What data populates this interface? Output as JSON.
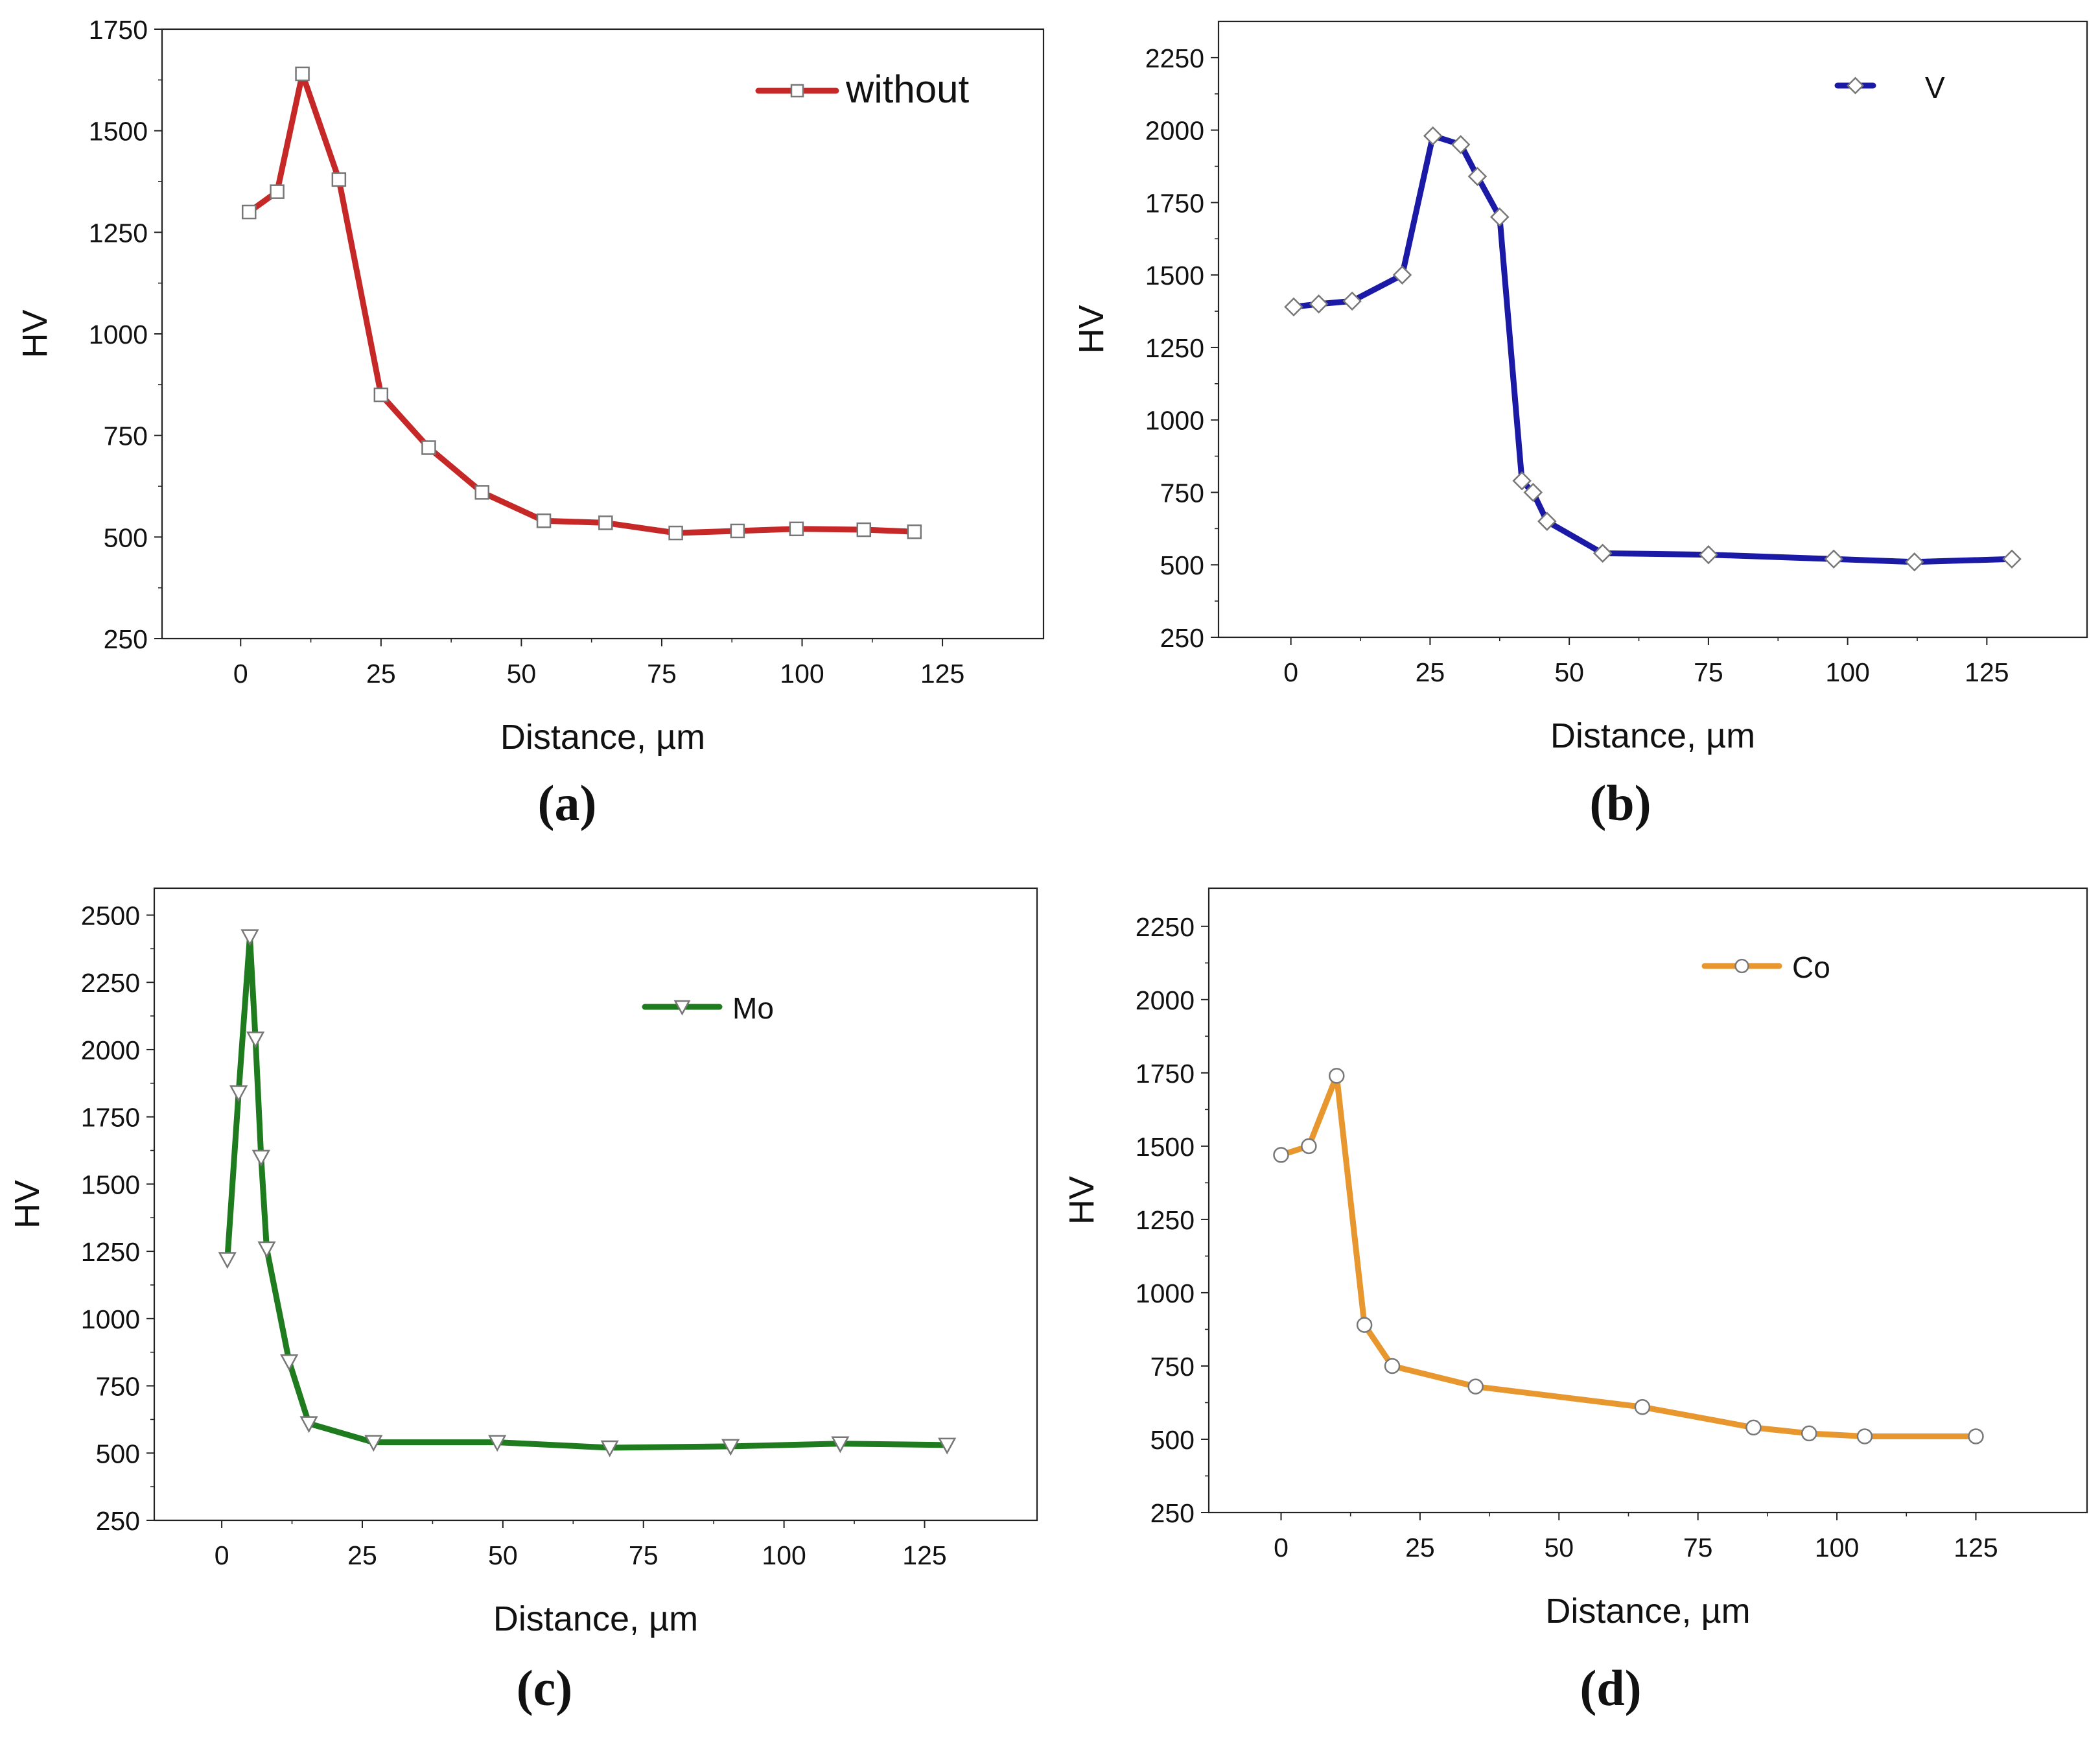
{
  "figure": {
    "panels": [
      {
        "id": "a",
        "label": "(a)",
        "color": "#c62828",
        "marker": "square"
      },
      {
        "id": "b",
        "label": "(b)",
        "color": "#1a1aa6",
        "marker": "diamond"
      },
      {
        "id": "c",
        "label": "(c)",
        "color": "#1e7b1e",
        "marker": "triangle-down"
      },
      {
        "id": "d",
        "label": "(d)",
        "color": "#e8962e",
        "marker": "circle"
      }
    ]
  },
  "chart_data": [
    {
      "type": "line",
      "panel": "(a)",
      "xlabel": "Distance, µm",
      "ylabel": "HV",
      "xlim": [
        -14,
        143
      ],
      "ylim": [
        250,
        1750
      ],
      "xticks": [
        0,
        25,
        50,
        75,
        100,
        125
      ],
      "yticks": [
        250,
        500,
        750,
        1000,
        1250,
        1500,
        1750
      ],
      "legend": "top-right",
      "series": [
        {
          "name": "without",
          "color": "#c62828",
          "marker": "square",
          "x": [
            1.5,
            6.5,
            11,
            17.5,
            25,
            33.5,
            43,
            54,
            65,
            77.5,
            88.5,
            99,
            111,
            120
          ],
          "y": [
            1300,
            1350,
            1640,
            1380,
            850,
            720,
            610,
            540,
            535,
            510,
            515,
            520,
            518,
            513
          ]
        }
      ]
    },
    {
      "type": "line",
      "panel": "(b)",
      "xlabel": "Distance, µm",
      "ylabel": "HV",
      "xlim": [
        -13,
        143
      ],
      "ylim": [
        250,
        2375
      ],
      "xticks": [
        0,
        25,
        50,
        75,
        100,
        125
      ],
      "yticks": [
        250,
        500,
        750,
        1000,
        1250,
        1500,
        1750,
        2000,
        2250
      ],
      "legend": "top-right",
      "series": [
        {
          "name": "V",
          "color": "#1a1aa6",
          "marker": "diamond",
          "x": [
            0.5,
            5,
            11,
            20,
            25.5,
            30.5,
            33.5,
            37.5,
            41.5,
            43.5,
            46,
            56,
            75,
            97.5,
            112,
            129.5
          ],
          "y": [
            1390,
            1400,
            1410,
            1500,
            1980,
            1950,
            1840,
            1700,
            790,
            750,
            650,
            540,
            535,
            520,
            510,
            520
          ]
        }
      ]
    },
    {
      "type": "line",
      "panel": "(c)",
      "xlabel": "Distance, µm",
      "ylabel": "HV",
      "xlim": [
        -12,
        145
      ],
      "ylim": [
        250,
        2600
      ],
      "xticks": [
        0,
        25,
        50,
        75,
        100,
        125
      ],
      "yticks": [
        250,
        500,
        750,
        1000,
        1250,
        1500,
        1750,
        2000,
        2250,
        2500
      ],
      "legend": "top-right",
      "series": [
        {
          "name": "Mo",
          "color": "#1e7b1e",
          "marker": "triangle-down",
          "x": [
            1,
            3,
            5,
            6,
            7,
            8,
            12,
            15.5,
            27,
            49,
            69,
            90.5,
            110,
            129
          ],
          "y": [
            1220,
            1840,
            2420,
            2040,
            1600,
            1260,
            840,
            610,
            540,
            540,
            520,
            525,
            535,
            530
          ]
        }
      ]
    },
    {
      "type": "line",
      "panel": "(d)",
      "xlabel": "Distance, µm",
      "ylabel": "HV",
      "xlim": [
        -13,
        145
      ],
      "ylim": [
        250,
        2380
      ],
      "xticks": [
        0,
        25,
        50,
        75,
        100,
        125
      ],
      "yticks": [
        250,
        500,
        750,
        1000,
        1250,
        1500,
        1750,
        2000,
        2250
      ],
      "legend": "top-right",
      "series": [
        {
          "name": "Co",
          "color": "#e8962e",
          "marker": "circle",
          "x": [
            0,
            5,
            10,
            15,
            20,
            35,
            65,
            85,
            95,
            105,
            125
          ],
          "y": [
            1470,
            1500,
            1740,
            890,
            750,
            680,
            610,
            540,
            520,
            510,
            510
          ]
        }
      ]
    }
  ]
}
